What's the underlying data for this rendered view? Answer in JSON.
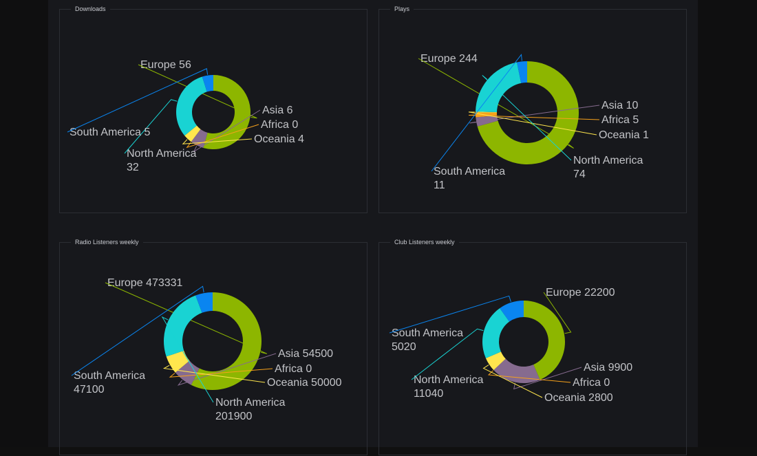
{
  "colors": {
    "Europe": "#8db600",
    "Asia": "#866b8f",
    "Africa": "#f7a21b",
    "Oceania": "#ffe64d",
    "North America": "#19d3d3",
    "South America": "#0a85f0",
    "label": "#c3c4c8",
    "panel_border": "#2c2e34",
    "panel_bg": "#17181c"
  },
  "chart_data": [
    {
      "type": "pie",
      "style": "donut",
      "title": "Downloads",
      "categories": [
        "Europe",
        "Asia",
        "Africa",
        "Oceania",
        "North America",
        "South America"
      ],
      "values": [
        56,
        6,
        0,
        4,
        32,
        5
      ],
      "labels": [
        "Europe 56",
        "Asia 6",
        "Africa 0",
        "Oceania 4",
        "North America\n32",
        "South America 5"
      ]
    },
    {
      "type": "pie",
      "style": "donut",
      "title": "Plays",
      "categories": [
        "Europe",
        "Asia",
        "Africa",
        "Oceania",
        "North America",
        "South America"
      ],
      "values": [
        244,
        10,
        5,
        1,
        74,
        11
      ],
      "labels": [
        "Europe 244",
        "Asia 10",
        "Africa 5",
        "Oceania 1",
        "North America\n74",
        "South America\n11"
      ]
    },
    {
      "type": "pie",
      "style": "donut",
      "title": "Radio Listeners weekly",
      "categories": [
        "Europe",
        "Asia",
        "Africa",
        "Oceania",
        "North America",
        "South America"
      ],
      "values": [
        473331,
        54500,
        0,
        50000,
        201900,
        47100
      ],
      "labels": [
        "Europe 473331",
        "Asia 54500",
        "Africa 0",
        "Oceania 50000",
        "North America\n201900",
        "South America\n47100"
      ]
    },
    {
      "type": "pie",
      "style": "donut",
      "title": "Club Listeners weekly",
      "categories": [
        "Europe",
        "Asia",
        "Africa",
        "Oceania",
        "North America",
        "South America"
      ],
      "values": [
        22200,
        9900,
        0,
        2800,
        11040,
        5020
      ],
      "labels": [
        "Europe 22200",
        "Asia 9900",
        "Africa 0",
        "Oceania 2800",
        "North America\n11040",
        "South America\n5020"
      ]
    }
  ]
}
